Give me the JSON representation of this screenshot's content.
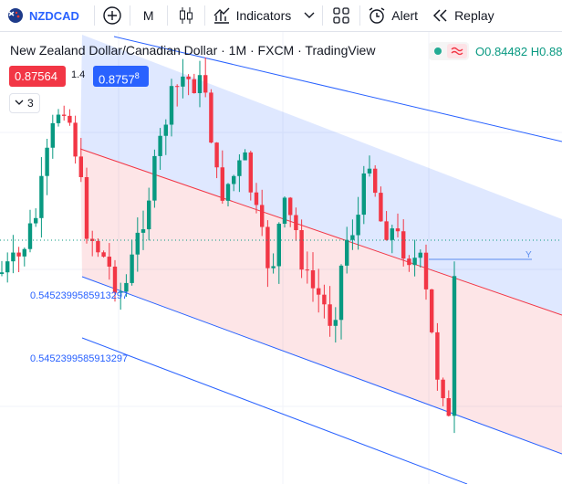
{
  "toolbar": {
    "symbol": "NZDCAD",
    "interval": "M",
    "indicators": "Indicators",
    "alert": "Alert",
    "replay": "Replay"
  },
  "legend": {
    "title": "New Zealand Dollar/Canadian Dollar · 1M · FXCM · TradingView",
    "open": "O0.84482",
    "high": "H0.88"
  },
  "quote": {
    "sell": "0.87564",
    "spread": "1.4",
    "buy": "0.8757",
    "buy_small": "8"
  },
  "collapse": "3",
  "drawing_labels": [
    "0.5452399585913297",
    "0.5452399585913297"
  ],
  "line_label": "Y"
}
